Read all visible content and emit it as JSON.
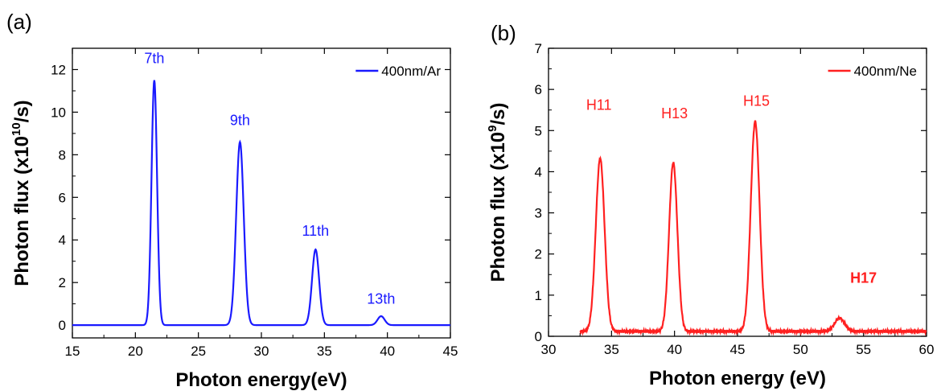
{
  "chart_data": [
    {
      "panel_label": "(a)",
      "type": "line",
      "xlabel": "Photon energy(eV)",
      "ylabel_parts": {
        "base": "Photon flux (x10",
        "exp": "10",
        "unit": "/s)"
      },
      "xlim": [
        15,
        45
      ],
      "ylim": [
        -0.6,
        13
      ],
      "xticks": [
        15,
        20,
        25,
        30,
        35,
        40,
        45
      ],
      "yticks": [
        0,
        2,
        4,
        6,
        8,
        10,
        12
      ],
      "color": "#1a1aff",
      "legend": {
        "label": "400nm/Ar",
        "position": "top-right"
      },
      "series": [
        {
          "name": "400nm/Ar",
          "peaks": [
            {
              "center": 21.5,
              "height": 11.5,
              "sigma": 0.22
            },
            {
              "center": 28.3,
              "height": 8.6,
              "sigma": 0.3
            },
            {
              "center": 34.3,
              "height": 3.55,
              "sigma": 0.28
            },
            {
              "center": 39.5,
              "height": 0.42,
              "sigma": 0.28
            }
          ],
          "baseline": 0.0
        }
      ],
      "annotations": [
        {
          "text": "7th",
          "x": 21.5,
          "y": 12.3
        },
        {
          "text": "9th",
          "x": 28.3,
          "y": 9.4
        },
        {
          "text": "11th",
          "x": 34.3,
          "y": 4.2
        },
        {
          "text": "13th",
          "x": 39.5,
          "y": 1.0
        }
      ]
    },
    {
      "panel_label": "(b)",
      "type": "line",
      "xlabel": "Photon energy (eV)",
      "ylabel_parts": {
        "base": "Photon flux (x10",
        "exp": "9",
        "unit": "/s)"
      },
      "xlim": [
        30,
        60
      ],
      "ylim": [
        0,
        7
      ],
      "xticks": [
        30,
        35,
        40,
        45,
        50,
        55,
        60
      ],
      "yticks": [
        0,
        1,
        2,
        3,
        4,
        5,
        6,
        7
      ],
      "color": "#ff2020",
      "legend": {
        "label": "400nm/Ne",
        "position": "top-right"
      },
      "series": [
        {
          "name": "400nm/Ne",
          "x_start": 32.5,
          "x_end": 60,
          "peaks": [
            {
              "center": 34.1,
              "height": 4.2,
              "sigma": 0.35
            },
            {
              "center": 39.9,
              "height": 4.1,
              "sigma": 0.33
            },
            {
              "center": 46.4,
              "height": 5.1,
              "sigma": 0.35
            },
            {
              "center": 53.1,
              "height": 0.32,
              "sigma": 0.4
            }
          ],
          "baseline": 0.12
        }
      ],
      "annotations": [
        {
          "text": "H11",
          "x": 34.0,
          "y": 5.5,
          "bold": false
        },
        {
          "text": "H13",
          "x": 40.0,
          "y": 5.3,
          "bold": false
        },
        {
          "text": "H15",
          "x": 46.5,
          "y": 5.6,
          "bold": false
        },
        {
          "text": "H17",
          "x": 55.0,
          "y": 1.3,
          "bold": true
        }
      ]
    }
  ]
}
